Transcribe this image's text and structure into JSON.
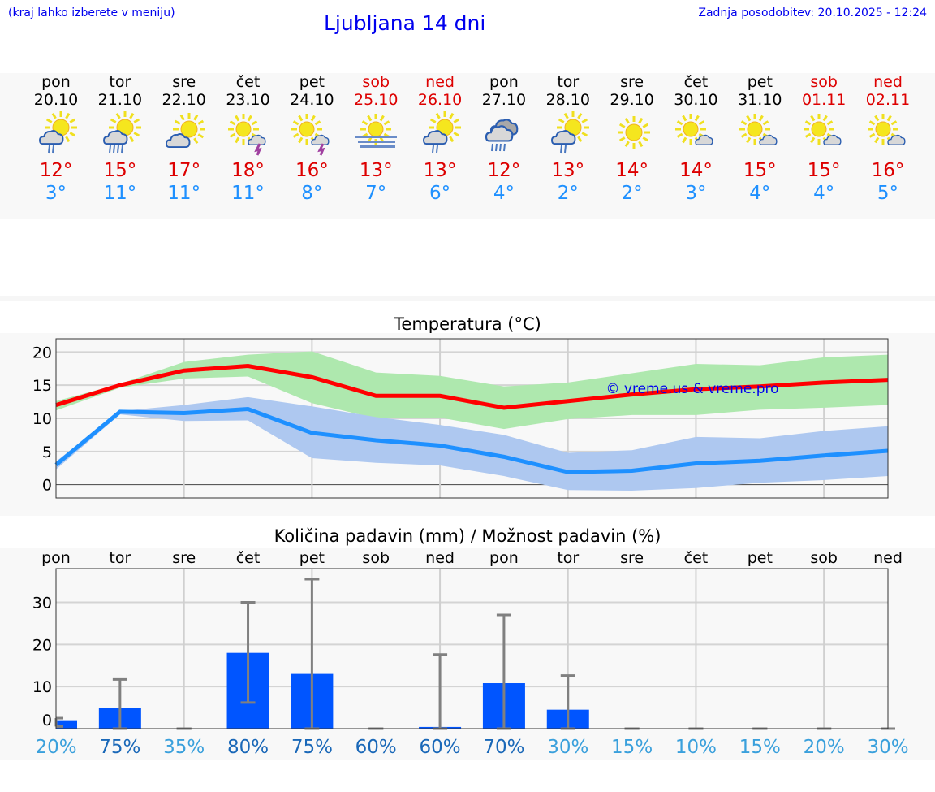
{
  "header": {
    "hint": "(kraj lahko izberete v meniju)",
    "title": "Ljubljana 14 dni",
    "updated": "Zadnja posodobitev: 20.10.2025 - 12:24"
  },
  "days": [
    {
      "name": "pon",
      "date": "20.10",
      "max": "12°",
      "min": "3°",
      "icon": "sun-cloud-rain-icon",
      "weekend": false
    },
    {
      "name": "tor",
      "date": "21.10",
      "max": "15°",
      "min": "11°",
      "icon": "sun-cloud-heavy-rain-icon",
      "weekend": false
    },
    {
      "name": "sre",
      "date": "22.10",
      "max": "17°",
      "min": "11°",
      "icon": "sun-cloud-icon",
      "weekend": false
    },
    {
      "name": "čet",
      "date": "23.10",
      "max": "18°",
      "min": "11°",
      "icon": "sun-thunderstorm-icon",
      "weekend": false
    },
    {
      "name": "pet",
      "date": "24.10",
      "max": "16°",
      "min": "8°",
      "icon": "sun-thunderstorm-icon",
      "weekend": false
    },
    {
      "name": "sob",
      "date": "25.10",
      "max": "13°",
      "min": "7°",
      "icon": "sun-fog-icon",
      "weekend": true
    },
    {
      "name": "ned",
      "date": "26.10",
      "max": "13°",
      "min": "6°",
      "icon": "sun-cloud-rain-icon",
      "weekend": true
    },
    {
      "name": "pon",
      "date": "27.10",
      "max": "12°",
      "min": "4°",
      "icon": "cloud-heavy-rain-icon",
      "weekend": false
    },
    {
      "name": "tor",
      "date": "28.10",
      "max": "13°",
      "min": "2°",
      "icon": "sun-cloud-rain-icon",
      "weekend": false
    },
    {
      "name": "sre",
      "date": "29.10",
      "max": "14°",
      "min": "2°",
      "icon": "sun-icon",
      "weekend": false
    },
    {
      "name": "čet",
      "date": "30.10",
      "max": "14°",
      "min": "3°",
      "icon": "sun-small-cloud-icon",
      "weekend": false
    },
    {
      "name": "pet",
      "date": "31.10",
      "max": "15°",
      "min": "4°",
      "icon": "sun-small-cloud-icon",
      "weekend": false
    },
    {
      "name": "sob",
      "date": "01.11",
      "max": "15°",
      "min": "4°",
      "icon": "sun-small-cloud-icon",
      "weekend": true
    },
    {
      "name": "ned",
      "date": "02.11",
      "max": "16°",
      "min": "5°",
      "icon": "sun-small-cloud-icon",
      "weekend": true
    }
  ],
  "colors": {
    "max": "#ff0000",
    "min": "#1e90ff",
    "max_band": "#aee8ae",
    "min_band": "#aec8f0",
    "bar": "#0055ff",
    "whisker": "#808080",
    "pct_low": "#3aa0dc",
    "pct_high": "#1a68b8"
  },
  "chart_data": [
    {
      "type": "line",
      "title": "Temperatura (°C)",
      "watermark": "© vreme.us & vreme.pro",
      "ylim": [
        -2,
        22
      ],
      "yticks": [
        0,
        5,
        10,
        15,
        20
      ],
      "grid": true,
      "series": [
        {
          "key": "max",
          "values": [
            12,
            15,
            17.2,
            17.9,
            16.2,
            13.4,
            13.4,
            11.6,
            12.6,
            13.6,
            14.4,
            14.8,
            15.4,
            15.8
          ],
          "upper": [
            12.6,
            15.2,
            18.5,
            19.6,
            20.1,
            16.9,
            16.4,
            14.8,
            15.4,
            16.8,
            18.2,
            18.0,
            19.2,
            19.6
          ],
          "lower": [
            11.2,
            14.6,
            16.0,
            16.3,
            12.3,
            10.0,
            10.1,
            8.4,
            9.9,
            10.5,
            10.5,
            11.3,
            11.6,
            12.0
          ]
        },
        {
          "key": "min",
          "values": [
            3,
            11,
            10.8,
            11.4,
            7.8,
            6.7,
            5.9,
            4.2,
            1.9,
            2.1,
            3.2,
            3.6,
            4.4,
            5.1
          ],
          "upper": [
            3.5,
            11.1,
            12.0,
            13.2,
            11.8,
            10.2,
            9.0,
            7.5,
            4.8,
            5.2,
            7.2,
            7.0,
            8.1,
            8.8
          ],
          "lower": [
            2.3,
            10.6,
            9.6,
            9.7,
            4.0,
            3.3,
            2.9,
            1.3,
            -0.8,
            -0.9,
            -0.5,
            0.3,
            0.7,
            1.3
          ]
        }
      ]
    },
    {
      "type": "bar",
      "title": "Količina padavin (mm) / Možnost padavin (%)",
      "ylim": [
        0,
        38
      ],
      "yticks": [
        0,
        10,
        20,
        30
      ],
      "grid": true,
      "categories": [
        "pon",
        "tor",
        "sre",
        "čet",
        "pet",
        "sob",
        "ned",
        "pon",
        "tor",
        "sre",
        "čet",
        "pet",
        "sob",
        "ned"
      ],
      "values": [
        2,
        5,
        0,
        18,
        13,
        0,
        0.4,
        10.8,
        4.5,
        0,
        0,
        0,
        0,
        0
      ],
      "err_low": [
        0.5,
        0,
        0,
        6.2,
        0,
        0,
        0,
        0,
        0,
        0,
        0,
        0,
        0,
        0
      ],
      "err_high": [
        2.5,
        11.7,
        0,
        30,
        35.5,
        0,
        17.6,
        27,
        12.6,
        0,
        0,
        0,
        0,
        0
      ],
      "probability": [
        "20%",
        "75%",
        "35%",
        "80%",
        "75%",
        "60%",
        "60%",
        "70%",
        "30%",
        "15%",
        "10%",
        "15%",
        "20%",
        "30%"
      ]
    }
  ]
}
